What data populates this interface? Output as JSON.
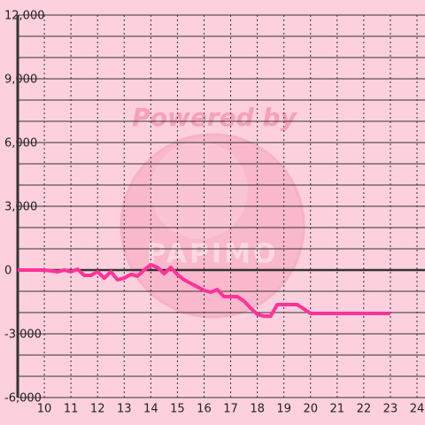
{
  "chart_data": {
    "type": "line",
    "watermark": [
      "Powered by",
      "PAPIMO"
    ],
    "x": [
      9,
      10,
      10.5,
      10.75,
      11,
      11.25,
      11.5,
      11.75,
      12,
      12.25,
      12.5,
      12.75,
      13,
      13.25,
      13.5,
      13.75,
      14,
      14.25,
      14.5,
      14.75,
      15,
      15.25,
      15.5,
      15.75,
      16,
      16.25,
      16.5,
      16.75,
      17,
      17.25,
      17.5,
      17.75,
      18,
      18.25,
      18.5,
      18.75,
      19,
      19.25,
      19.5,
      19.75,
      20,
      21,
      22,
      23
    ],
    "series": [
      {
        "color": "#ff3399",
        "values": [
          0,
          0,
          -80,
          0,
          -80,
          40,
          -250,
          -250,
          -80,
          -380,
          -80,
          -460,
          -380,
          -200,
          -290,
          0,
          250,
          125,
          -170,
          125,
          -210,
          -460,
          -625,
          -790,
          -960,
          -1040,
          -920,
          -1250,
          -1250,
          -1250,
          -1460,
          -1790,
          -2080,
          -2170,
          -2170,
          -1625,
          -1625,
          -1625,
          -1625,
          -1830,
          -2040,
          -2040,
          -2040,
          -2040
        ]
      }
    ],
    "xlim": [
      9,
      24.3
    ],
    "xticks": [
      10,
      11,
      12,
      13,
      14,
      15,
      16,
      17,
      18,
      19,
      20,
      21,
      22,
      23,
      24
    ],
    "ylim": [
      -6000,
      12000
    ],
    "yticks": [
      {
        "value": -6000,
        "label": "-6,000"
      },
      {
        "value": -3000,
        "label": "-3,000"
      },
      0,
      {
        "value": 3000,
        "label": "3,000"
      },
      {
        "value": 6000,
        "label": "6,000"
      },
      {
        "value": 9000,
        "label": "9,000"
      },
      {
        "value": 12000,
        "label": "12,000"
      }
    ],
    "minor_yticks": [
      -5000,
      -4000,
      -2000,
      -1000,
      1000,
      2000,
      4000,
      5000,
      7000,
      8000,
      10000,
      11000
    ],
    "grid": true
  }
}
